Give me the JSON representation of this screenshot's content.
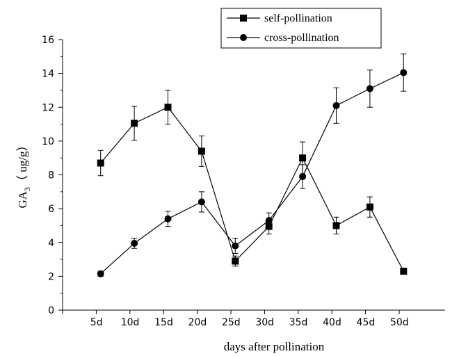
{
  "chart_data": {
    "type": "line",
    "categories": [
      "5d",
      "10d",
      "15d",
      "20d",
      "25d",
      "30d",
      "35d",
      "40d",
      "45d",
      "50d"
    ],
    "series": [
      {
        "name": "self-pollination",
        "marker": "square",
        "values": [
          8.7,
          11.05,
          12.0,
          9.4,
          2.9,
          4.95,
          9.0,
          5.0,
          6.1,
          2.3
        ],
        "errors": [
          0.75,
          1.0,
          1.0,
          0.9,
          0.3,
          0.45,
          0.95,
          0.5,
          0.6,
          0.15
        ]
      },
      {
        "name": "cross-pollination",
        "marker": "circle",
        "values": [
          2.15,
          3.95,
          5.4,
          6.4,
          3.8,
          5.3,
          7.9,
          12.1,
          13.1,
          14.05
        ],
        "errors": [
          0.15,
          0.3,
          0.45,
          0.6,
          0.45,
          0.45,
          0.7,
          1.05,
          1.1,
          1.1
        ]
      }
    ],
    "xlabel": "days after pollination",
    "ylabel": {
      "base": "GA",
      "sub": "3",
      "rest": "（ ug/g）"
    },
    "ylim": [
      0,
      16
    ],
    "yticks": [
      0,
      2,
      4,
      6,
      8,
      10,
      12,
      14,
      16
    ],
    "grid": false,
    "legend_position": "top-right",
    "line_color": "#000000"
  }
}
